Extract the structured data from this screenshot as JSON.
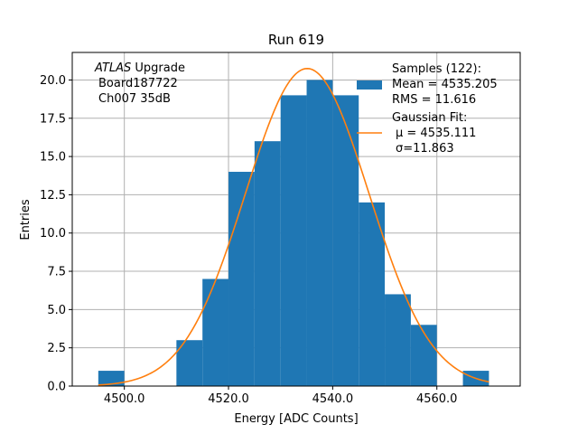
{
  "chart_data": {
    "type": "bar",
    "title": "Run 619",
    "xlabel": "Energy [ADC Counts]",
    "ylabel": "Entries",
    "xlim": [
      4490,
      4576
    ],
    "ylim": [
      0,
      21.8
    ],
    "xticks": [
      4500,
      4520,
      4540,
      4560
    ],
    "xtick_labels": [
      "4500.0",
      "4520.0",
      "4540.0",
      "4560.0"
    ],
    "yticks": [
      0,
      2.5,
      5,
      7.5,
      10,
      12.5,
      15,
      17.5,
      20
    ],
    "ytick_labels": [
      "0.0",
      "2.5",
      "5.0",
      "7.5",
      "10.0",
      "12.5",
      "15.0",
      "17.5",
      "20.0"
    ],
    "grid": true,
    "legend_position": "top-right",
    "annotation": {
      "line1_italic": "ATLAS",
      "line1_rest": " Upgrade",
      "line2": "Board187722",
      "line3": "Ch007 35dB"
    },
    "histogram": {
      "color": "#1f77b4",
      "legend_title": "Samples (122):",
      "legend_lines": [
        " Mean = 4535.205",
        " RMS = 11.616"
      ],
      "bins": [
        {
          "x0": 4495,
          "x1": 4500,
          "count": 1
        },
        {
          "x0": 4500,
          "x1": 4505,
          "count": 0
        },
        {
          "x0": 4505,
          "x1": 4510,
          "count": 0
        },
        {
          "x0": 4510,
          "x1": 4515,
          "count": 3
        },
        {
          "x0": 4515,
          "x1": 4520,
          "count": 7
        },
        {
          "x0": 4520,
          "x1": 4525,
          "count": 14
        },
        {
          "x0": 4525,
          "x1": 4530,
          "count": 16
        },
        {
          "x0": 4530,
          "x1": 4535,
          "count": 19
        },
        {
          "x0": 4535,
          "x1": 4540,
          "count": 20
        },
        {
          "x0": 4540,
          "x1": 4545,
          "count": 19
        },
        {
          "x0": 4545,
          "x1": 4550,
          "count": 12
        },
        {
          "x0": 4550,
          "x1": 4555,
          "count": 6
        },
        {
          "x0": 4555,
          "x1": 4560,
          "count": 4
        },
        {
          "x0": 4560,
          "x1": 4565,
          "count": 0
        },
        {
          "x0": 4565,
          "x1": 4570,
          "count": 1
        }
      ]
    },
    "fit": {
      "color": "#ff7f0e",
      "legend_title": "Gaussian Fit:",
      "legend_lines": [
        "μ = 4535.111",
        "σ=11.863"
      ],
      "mu": 4535.111,
      "sigma": 11.863,
      "amplitude": 20.75,
      "x_range": [
        4495,
        4570
      ]
    }
  }
}
